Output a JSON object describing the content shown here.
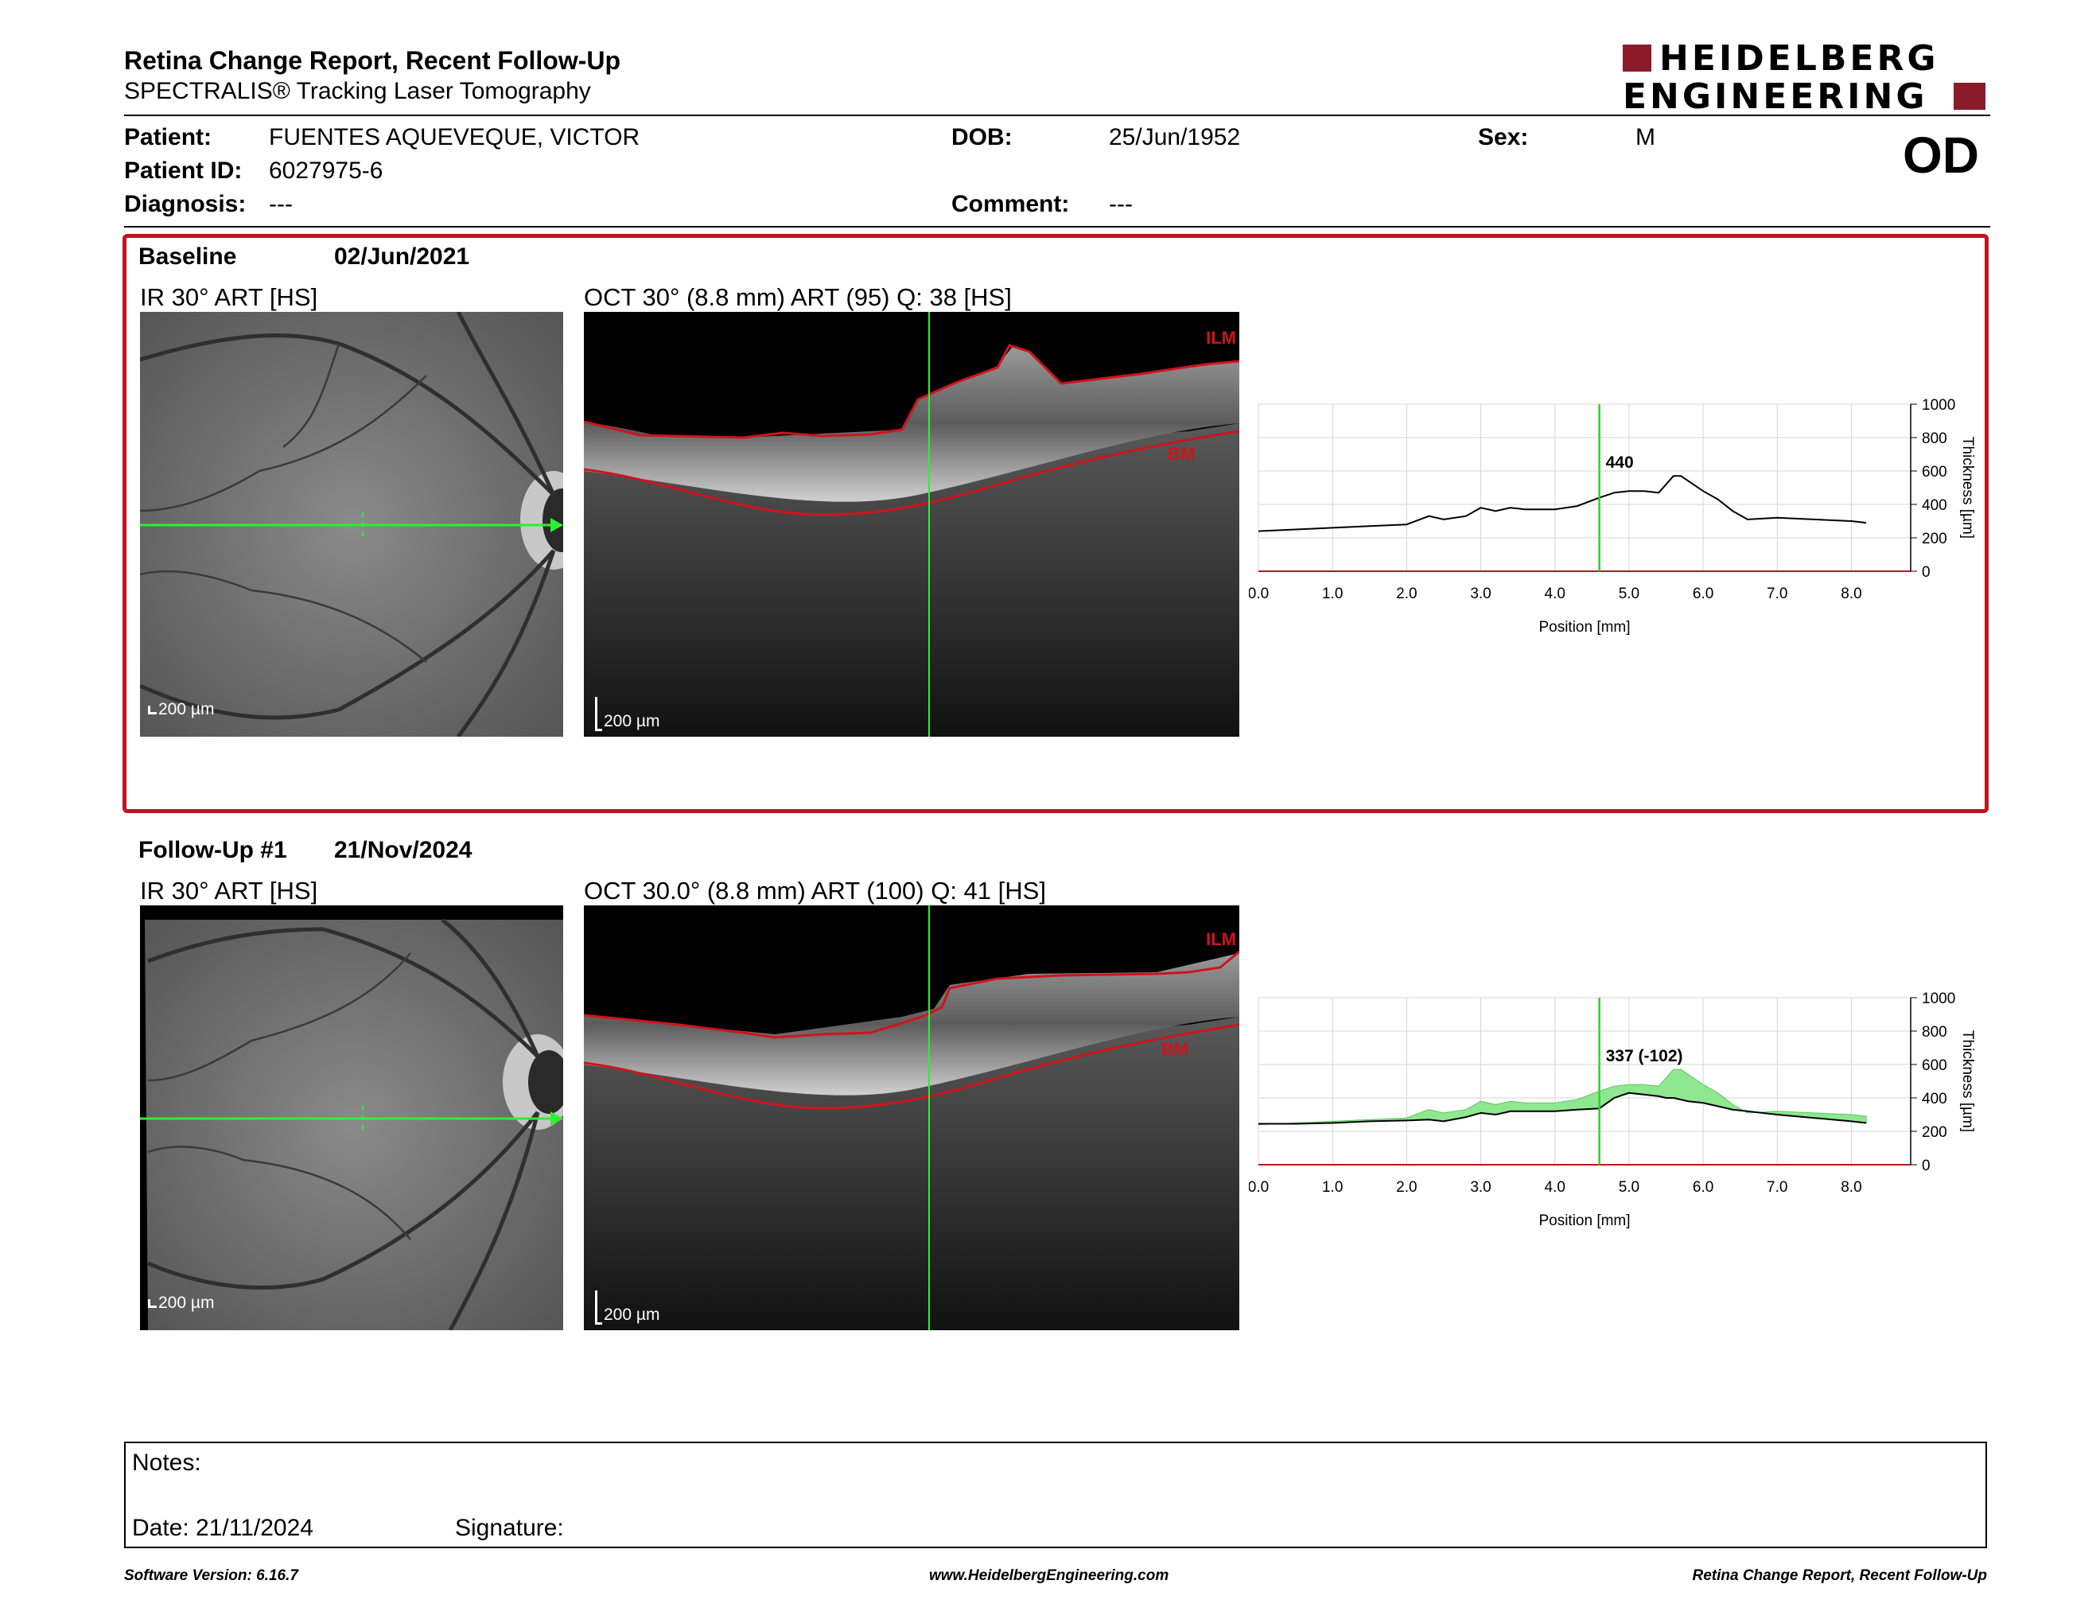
{
  "report": {
    "title": "Retina Change Report, Recent Follow-Up",
    "subtitle": "SPECTRALIS® Tracking Laser Tomography"
  },
  "logo": {
    "line1": "HEIDELBERG",
    "line2": "ENGINEERING",
    "brand_color": "#8b1a2b"
  },
  "patient": {
    "name_label": "Patient:",
    "name": "FUENTES AQUEVEQUE, VICTOR",
    "id_label": "Patient ID:",
    "id": "6027975-6",
    "diagnosis_label": "Diagnosis:",
    "diagnosis": "---",
    "dob_label": "DOB:",
    "dob": "25/Jun/1952",
    "comment_label": "Comment:",
    "comment": "---",
    "sex_label": "Sex:",
    "sex": "M",
    "eye": "OD"
  },
  "baseline": {
    "label": "Baseline",
    "date": "02/Jun/2021",
    "ir_title": "IR 30° ART [HS]",
    "oct_title": "OCT 30° (8.8 mm) ART (95) Q: 38 [HS]",
    "ir_scale": "200 µm",
    "oct_scale": "200 µm",
    "ilm_label": "ILM",
    "bm_label": "BM",
    "marker_value": "440"
  },
  "followup": {
    "label": "Follow-Up #1",
    "date": "21/Nov/2024",
    "ir_title": "IR 30° ART [HS]",
    "oct_title": "OCT 30.0° (8.8 mm) ART (100) Q: 41 [HS]",
    "ir_scale": "200 µm",
    "oct_scale": "200 µm",
    "ilm_label": "ILM",
    "bm_label": "BM",
    "marker_value": "337 (-102)"
  },
  "chart_data": [
    {
      "type": "line",
      "xlabel": "Position [mm]",
      "ylabel": "Thickness [µm]",
      "xlim": [
        0,
        8.8
      ],
      "ylim": [
        0,
        1000
      ],
      "xticks": [
        "0.0",
        "1.0",
        "2.0",
        "3.0",
        "4.0",
        "5.0",
        "6.0",
        "7.0",
        "8.0"
      ],
      "yticks": [
        "0",
        "200",
        "400",
        "600",
        "800",
        "1000"
      ],
      "marker_x": 4.6,
      "series": [
        {
          "x": [
            0,
            0.5,
            1.0,
            1.5,
            2.0,
            2.3,
            2.5,
            2.8,
            3.0,
            3.2,
            3.4,
            3.6,
            3.8,
            4.0,
            4.3,
            4.6,
            4.8,
            5.0,
            5.2,
            5.4,
            5.5,
            5.6,
            5.7,
            5.8,
            6.0,
            6.2,
            6.4,
            6.6,
            7.0,
            7.5,
            8.0,
            8.2
          ],
          "values": [
            240,
            250,
            260,
            270,
            280,
            330,
            310,
            330,
            380,
            360,
            380,
            370,
            370,
            370,
            390,
            440,
            470,
            480,
            480,
            470,
            520,
            570,
            570,
            540,
            480,
            430,
            360,
            310,
            320,
            310,
            300,
            290
          ]
        }
      ]
    },
    {
      "type": "area",
      "xlabel": "Position [mm]",
      "ylabel": "Thickness [µm]",
      "xlim": [
        0,
        8.8
      ],
      "ylim": [
        0,
        1000
      ],
      "xticks": [
        "0.0",
        "1.0",
        "2.0",
        "3.0",
        "4.0",
        "5.0",
        "6.0",
        "7.0",
        "8.0"
      ],
      "yticks": [
        "0",
        "200",
        "400",
        "600",
        "800",
        "1000"
      ],
      "marker_x": 4.6,
      "series": [
        {
          "x": [
            0,
            0.5,
            1.0,
            1.5,
            2.0,
            2.3,
            2.5,
            2.8,
            3.0,
            3.2,
            3.4,
            3.6,
            3.8,
            4.0,
            4.3,
            4.6,
            4.8,
            5.0,
            5.2,
            5.4,
            5.5,
            5.6,
            5.7,
            5.8,
            6.0,
            6.2,
            6.4,
            6.6,
            7.0,
            7.5,
            8.0,
            8.2
          ],
          "values": [
            240,
            250,
            260,
            270,
            280,
            330,
            310,
            330,
            380,
            360,
            380,
            370,
            370,
            370,
            390,
            440,
            470,
            480,
            480,
            470,
            520,
            570,
            570,
            540,
            480,
            430,
            360,
            310,
            320,
            310,
            300,
            290
          ]
        },
        {
          "x": [
            0,
            0.5,
            1.0,
            1.5,
            2.0,
            2.3,
            2.5,
            2.8,
            3.0,
            3.2,
            3.4,
            3.6,
            3.8,
            4.0,
            4.3,
            4.6,
            4.8,
            5.0,
            5.2,
            5.4,
            5.5,
            5.6,
            5.7,
            5.8,
            6.0,
            6.2,
            6.4,
            6.6,
            7.0,
            7.5,
            8.0,
            8.2
          ],
          "values": [
            245,
            245,
            250,
            260,
            265,
            270,
            260,
            285,
            310,
            300,
            320,
            320,
            320,
            320,
            330,
            337,
            400,
            430,
            420,
            410,
            400,
            400,
            390,
            380,
            370,
            350,
            330,
            320,
            300,
            280,
            260,
            250
          ]
        }
      ]
    }
  ],
  "notes": {
    "notes_label": "Notes:",
    "date_label": "Date: 21/11/2024",
    "signature_label": "Signature:"
  },
  "footer": {
    "version": "Software Version: 6.16.7",
    "url": "www.HeidelbergEngineering.com",
    "report": "Retina Change Report, Recent Follow-Up"
  }
}
